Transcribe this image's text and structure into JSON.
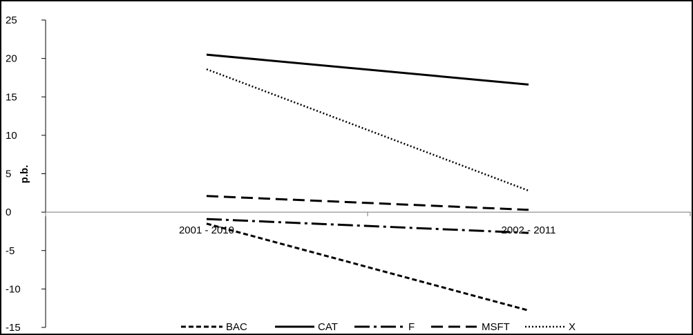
{
  "chart_data": {
    "type": "line",
    "title": "",
    "xlabel": "",
    "ylabel": "p.b.",
    "categories": [
      "2001 - 2010",
      "2002 - 2011"
    ],
    "ylim": [
      -15,
      25
    ],
    "yticks": [
      25,
      20,
      15,
      10,
      5,
      0,
      -5,
      -10,
      -15
    ],
    "grid": false,
    "legend_position": "bottom",
    "series": [
      {
        "name": "BAC",
        "values": [
          -1.5,
          -12.8
        ],
        "dash": "short-dash"
      },
      {
        "name": "CAT",
        "values": [
          20.5,
          16.6
        ],
        "dash": "solid"
      },
      {
        "name": "F",
        "values": [
          -0.9,
          -2.7
        ],
        "dash": "dash-dot"
      },
      {
        "name": "MSFT",
        "values": [
          2.1,
          0.3
        ],
        "dash": "long-dash"
      },
      {
        "name": "X",
        "values": [
          18.6,
          2.8
        ],
        "dash": "dotted"
      }
    ],
    "line_color": "#000000"
  }
}
